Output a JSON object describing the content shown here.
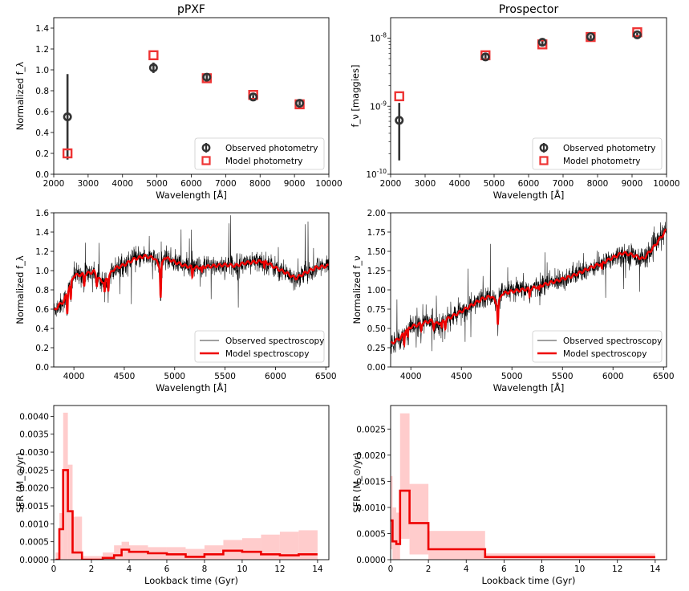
{
  "chart_data": [
    {
      "id": "pp-phot",
      "type": "scatter",
      "title": "pPXF",
      "xlabel": "Wavelength [Å]",
      "ylabel": "Normalized f_λ",
      "xlim": [
        2000,
        10000
      ],
      "ylim": [
        0,
        1.5
      ],
      "xticks": [
        2000,
        3000,
        4000,
        5000,
        6000,
        7000,
        8000,
        9000,
        10000
      ],
      "yticks": [
        0.0,
        0.2,
        0.4,
        0.6,
        0.8,
        1.0,
        1.2,
        1.4
      ],
      "ytick_labels": [
        "0.0",
        "0.2",
        "0.4",
        "0.6",
        "0.8",
        "1.0",
        "1.2",
        "1.4"
      ],
      "legend": {
        "position": "lower-right",
        "entries": [
          "Observed photometry",
          "Model photometry"
        ]
      },
      "series": [
        {
          "name": "Observed photometry",
          "color": "#333333",
          "x": [
            2400,
            4900,
            6450,
            7800,
            9150
          ],
          "y": [
            0.55,
            1.02,
            0.93,
            0.74,
            0.68
          ],
          "yerr": [
            0.41,
            0.05,
            0.03,
            0.02,
            0.02
          ]
        },
        {
          "name": "Model photometry",
          "color": "#ee3333",
          "x": [
            2400,
            4900,
            6450,
            7800,
            9150
          ],
          "y": [
            0.2,
            1.14,
            0.92,
            0.76,
            0.67
          ]
        }
      ]
    },
    {
      "id": "pr-phot",
      "type": "scatter",
      "title": "Prospector",
      "xlabel": "Wavelength [Å]",
      "ylabel": "f_ν [maggies]",
      "yscale": "log",
      "xlim": [
        2000,
        10000
      ],
      "ylim": [
        1e-10,
        2e-08
      ],
      "xticks": [
        2000,
        3000,
        4000,
        5000,
        6000,
        7000,
        8000,
        9000,
        10000
      ],
      "yticks": [
        1e-10,
        1e-09,
        1e-08
      ],
      "legend": {
        "position": "lower-right",
        "entries": [
          "Observed photometry",
          "Model photometry"
        ]
      },
      "series": [
        {
          "name": "Observed photometry",
          "color": "#333333",
          "x": [
            2250,
            4750,
            6400,
            7800,
            9150
          ],
          "y": [
            6.2e-10,
            5.3e-09,
            8.7e-09,
            1.05e-08,
            1.12e-08
          ],
          "ylo": [
            1.6e-10,
            4.8e-09,
            8e-09,
            9.8e-09,
            1.05e-08
          ],
          "yhi": [
            1.12e-09,
            5.8e-09,
            9.3e-09,
            1.1e-08,
            1.2e-08
          ]
        },
        {
          "name": "Model photometry",
          "color": "#ee3333",
          "x": [
            2250,
            4750,
            6400,
            7800,
            9150
          ],
          "y": [
            1.4e-09,
            5.6e-09,
            8.1e-09,
            1.04e-08,
            1.22e-08
          ]
        }
      ]
    },
    {
      "id": "pp-spec",
      "type": "line",
      "xlabel": "Wavelength [Å]",
      "ylabel": "Normalized f_λ",
      "xlim": [
        3800,
        6530
      ],
      "ylim": [
        0,
        1.6
      ],
      "xticks": [
        4000,
        4500,
        5000,
        5500,
        6000,
        6500
      ],
      "yticks": [
        0.0,
        0.2,
        0.4,
        0.6,
        0.8,
        1.0,
        1.2,
        1.4,
        1.6
      ],
      "ytick_labels": [
        "0.0",
        "0.2",
        "0.4",
        "0.6",
        "0.8",
        "1.0",
        "1.2",
        "1.4",
        "1.6"
      ],
      "legend": {
        "position": "lower-right",
        "entries": [
          "Observed spectroscopy",
          "Model spectroscopy"
        ]
      },
      "continuum": [
        [
          3800,
          0.58
        ],
        [
          3850,
          0.64
        ],
        [
          3900,
          0.68
        ],
        [
          3950,
          0.82
        ],
        [
          4000,
          0.95
        ],
        [
          4100,
          0.96
        ],
        [
          4200,
          0.99
        ],
        [
          4250,
          0.91
        ],
        [
          4300,
          0.88
        ],
        [
          4400,
          1.02
        ],
        [
          4500,
          1.06
        ],
        [
          4600,
          1.12
        ],
        [
          4700,
          1.15
        ],
        [
          4800,
          1.13
        ],
        [
          4860,
          1.02
        ],
        [
          4900,
          1.14
        ],
        [
          5000,
          1.09
        ],
        [
          5100,
          1.05
        ],
        [
          5200,
          1.03
        ],
        [
          5300,
          1.04
        ],
        [
          5400,
          1.05
        ],
        [
          5500,
          1.06
        ],
        [
          5600,
          1.05
        ],
        [
          5700,
          1.08
        ],
        [
          5800,
          1.09
        ],
        [
          5890,
          1.1
        ],
        [
          6000,
          1.03
        ],
        [
          6100,
          0.98
        ],
        [
          6200,
          0.92
        ],
        [
          6300,
          0.98
        ],
        [
          6400,
          1.03
        ],
        [
          6530,
          1.05
        ]
      ],
      "absorption": [
        [
          3934,
          0.22
        ],
        [
          3969,
          0.18
        ],
        [
          4102,
          0.12
        ],
        [
          4227,
          0.1
        ],
        [
          4305,
          0.12
        ],
        [
          4341,
          0.14
        ],
        [
          4861,
          0.3
        ],
        [
          5175,
          0.1
        ],
        [
          5270,
          0.06
        ],
        [
          5890,
          0.08
        ]
      ],
      "series": [
        {
          "name": "Observed spectroscopy",
          "color": "#000000"
        },
        {
          "name": "Model spectroscopy",
          "color": "#ee0000"
        }
      ]
    },
    {
      "id": "pr-spec",
      "type": "line",
      "xlabel": "Wavelength [Å]",
      "ylabel": "Normalized f_ν",
      "xlim": [
        3800,
        6530
      ],
      "ylim": [
        0,
        2.0
      ],
      "xticks": [
        4000,
        4500,
        5000,
        5500,
        6000,
        6500
      ],
      "yticks": [
        0,
        0.25,
        0.5,
        0.75,
        1.0,
        1.25,
        1.5,
        1.75,
        2.0
      ],
      "ytick_labels": [
        "0.00",
        "0.25",
        "0.50",
        "0.75",
        "1.00",
        "1.25",
        "1.50",
        "1.75",
        "2.00"
      ],
      "legend": {
        "position": "lower-right",
        "entries": [
          "Observed spectroscopy",
          "Model spectroscopy"
        ]
      },
      "continuum": [
        [
          3800,
          0.3
        ],
        [
          3900,
          0.38
        ],
        [
          3950,
          0.48
        ],
        [
          4000,
          0.52
        ],
        [
          4100,
          0.56
        ],
        [
          4200,
          0.6
        ],
        [
          4250,
          0.56
        ],
        [
          4300,
          0.58
        ],
        [
          4400,
          0.65
        ],
        [
          4500,
          0.72
        ],
        [
          4600,
          0.8
        ],
        [
          4700,
          0.88
        ],
        [
          4800,
          0.92
        ],
        [
          4860,
          0.8
        ],
        [
          4900,
          0.95
        ],
        [
          5000,
          0.98
        ],
        [
          5200,
          1.02
        ],
        [
          5400,
          1.1
        ],
        [
          5600,
          1.18
        ],
        [
          5800,
          1.3
        ],
        [
          5900,
          1.35
        ],
        [
          6000,
          1.42
        ],
        [
          6100,
          1.48
        ],
        [
          6200,
          1.45
        ],
        [
          6300,
          1.4
        ],
        [
          6400,
          1.55
        ],
        [
          6530,
          1.78
        ]
      ],
      "absorption": [
        [
          3934,
          0.15
        ],
        [
          3969,
          0.12
        ],
        [
          4102,
          0.08
        ],
        [
          4227,
          0.07
        ],
        [
          4305,
          0.08
        ],
        [
          4341,
          0.1
        ],
        [
          4861,
          0.25
        ],
        [
          5175,
          0.1
        ],
        [
          5270,
          0.06
        ],
        [
          5890,
          0.08
        ]
      ],
      "series": [
        {
          "name": "Observed spectroscopy",
          "color": "#000000"
        },
        {
          "name": "Model spectroscopy",
          "color": "#ee0000"
        }
      ]
    },
    {
      "id": "pp-sfh",
      "type": "area",
      "xlabel": "Lookback time (Gyr)",
      "ylabel": "SFR (M_⊙/yr)",
      "xlim": [
        0,
        14.6
      ],
      "ylim": [
        0,
        0.0043
      ],
      "xticks": [
        0,
        2,
        4,
        6,
        8,
        10,
        12,
        14
      ],
      "yticks": [
        0,
        0.0005,
        0.001,
        0.0015,
        0.002,
        0.0025,
        0.003,
        0.0035,
        0.004
      ],
      "ytick_labels": [
        "0.0000",
        "0.0005",
        "0.0010",
        "0.0015",
        "0.0020",
        "0.0025",
        "0.0030",
        "0.0035",
        "0.0040"
      ],
      "steps": [
        {
          "x0": 0.1,
          "x1": 0.3,
          "y": 0.0,
          "hi": 0.0002
        },
        {
          "x0": 0.3,
          "x1": 0.5,
          "y": 0.00085,
          "hi": 0.0013
        },
        {
          "x0": 0.5,
          "x1": 0.75,
          "y": 0.0025,
          "hi": 0.0041
        },
        {
          "x0": 0.75,
          "x1": 1.0,
          "y": 0.00135,
          "hi": 0.00265
        },
        {
          "x0": 1.0,
          "x1": 1.5,
          "y": 0.0002,
          "hi": 0.0012
        },
        {
          "x0": 1.5,
          "x1": 2.0,
          "y": 0.0,
          "hi": 0.0001
        },
        {
          "x0": 2.0,
          "x1": 2.6,
          "y": 0.0,
          "hi": 0.0001
        },
        {
          "x0": 2.6,
          "x1": 3.2,
          "y": 5e-05,
          "hi": 0.0002
        },
        {
          "x0": 3.2,
          "x1": 3.6,
          "y": 0.00012,
          "hi": 0.0004
        },
        {
          "x0": 3.6,
          "x1": 4.0,
          "y": 0.00028,
          "hi": 0.0005
        },
        {
          "x0": 4.0,
          "x1": 5.0,
          "y": 0.00022,
          "hi": 0.0004
        },
        {
          "x0": 5.0,
          "x1": 6.0,
          "y": 0.00018,
          "hi": 0.00035
        },
        {
          "x0": 6.0,
          "x1": 7.0,
          "y": 0.00015,
          "hi": 0.00035
        },
        {
          "x0": 7.0,
          "x1": 8.0,
          "y": 8e-05,
          "hi": 0.0003
        },
        {
          "x0": 8.0,
          "x1": 9.0,
          "y": 0.00015,
          "hi": 0.0004
        },
        {
          "x0": 9.0,
          "x1": 10.0,
          "y": 0.00025,
          "hi": 0.00055
        },
        {
          "x0": 10.0,
          "x1": 11.0,
          "y": 0.00022,
          "hi": 0.0006
        },
        {
          "x0": 11.0,
          "x1": 12.0,
          "y": 0.00015,
          "hi": 0.0007
        },
        {
          "x0": 12.0,
          "x1": 13.0,
          "y": 0.00012,
          "hi": 0.00078
        },
        {
          "x0": 13.0,
          "x1": 14.0,
          "y": 0.00015,
          "hi": 0.00082
        }
      ],
      "line_color": "#ee0000",
      "band_color": "#ffcccc"
    },
    {
      "id": "pr-sfh",
      "type": "area",
      "xlabel": "Lookback time (Gyr)",
      "ylabel": "SFR (M_⊙/yr)",
      "xlim": [
        0,
        14.6
      ],
      "ylim": [
        0,
        0.00295
      ],
      "xticks": [
        0,
        2,
        4,
        6,
        8,
        10,
        12,
        14
      ],
      "yticks": [
        0,
        0.0005,
        0.001,
        0.0015,
        0.002,
        0.0025
      ],
      "ytick_labels": [
        "0.0000",
        "0.0005",
        "0.0010",
        "0.0015",
        "0.0020",
        "0.0025"
      ],
      "steps": [
        {
          "x0": 0.0,
          "x1": 0.1,
          "y": 0.00075,
          "lo": 0.0002,
          "hi": 0.0016
        },
        {
          "x0": 0.1,
          "x1": 0.3,
          "y": 0.00035,
          "lo": 0.0,
          "hi": 0.001
        },
        {
          "x0": 0.3,
          "x1": 0.5,
          "y": 0.0003,
          "lo": 0.0,
          "hi": 0.0009
        },
        {
          "x0": 0.5,
          "x1": 1.0,
          "y": 0.00132,
          "lo": 0.0004,
          "hi": 0.0028
        },
        {
          "x0": 1.0,
          "x1": 2.0,
          "y": 0.0007,
          "lo": 0.0001,
          "hi": 0.00145
        },
        {
          "x0": 2.0,
          "x1": 5.0,
          "y": 0.0002,
          "lo": 0.0,
          "hi": 0.00055
        },
        {
          "x0": 5.0,
          "x1": 14.0,
          "y": 5e-05,
          "lo": 0.0,
          "hi": 0.00012
        }
      ],
      "line_color": "#ee0000",
      "band_color": "#ffcccc"
    }
  ]
}
